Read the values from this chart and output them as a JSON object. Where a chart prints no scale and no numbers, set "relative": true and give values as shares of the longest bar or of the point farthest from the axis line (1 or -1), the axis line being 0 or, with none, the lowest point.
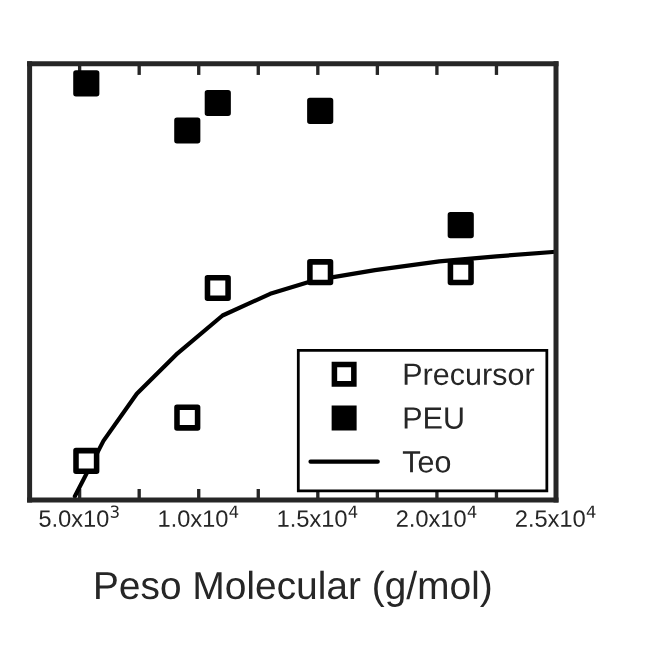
{
  "chart_data": {
    "type": "scatter",
    "xlabel": "Peso Molecular (g/mol)",
    "relative": true,
    "xlim": [
      2900,
      25000
    ],
    "xticks": [
      {
        "value": 5000,
        "label": "5.0x10$^{3}$"
      },
      {
        "value": 7500,
        "label": null
      },
      {
        "value": 10000,
        "label": "1.0x10$^{4}$"
      },
      {
        "value": 12500,
        "label": null
      },
      {
        "value": 15000,
        "label": "1.5x10$^{4}$"
      },
      {
        "value": 17500,
        "label": null
      },
      {
        "value": 20000,
        "label": "2.0x10$^{4}$"
      },
      {
        "value": 22500,
        "label": null
      },
      {
        "value": 25000,
        "label": "2.5x10$^{4}$"
      }
    ],
    "legend": "bottom right",
    "series": [
      {
        "name": "Precursor",
        "marker": "square",
        "color": "#ffffff",
        "x": [
          5280,
          9520,
          10800,
          15100,
          21000
        ],
        "values": [
          0.094,
          0.198,
          0.509,
          0.547,
          0.547
        ]
      },
      {
        "name": "PEU",
        "marker": "square",
        "color": "#000000",
        "x": [
          5280,
          9520,
          10800,
          15100,
          21000
        ],
        "values": [
          1,
          0.887,
          0.953,
          0.934,
          0.66
        ]
      },
      {
        "name": "Teo",
        "type": "line",
        "marker": "none",
        "color": "#000000",
        "x": [
          4800,
          6000,
          7400,
          9050,
          11000,
          13000,
          14900,
          17400,
          20100,
          22500,
          25000
        ],
        "values": [
          0.009,
          0.142,
          0.255,
          0.349,
          0.443,
          0.495,
          0.528,
          0.552,
          0.573,
          0.585,
          0.596
        ]
      }
    ]
  }
}
